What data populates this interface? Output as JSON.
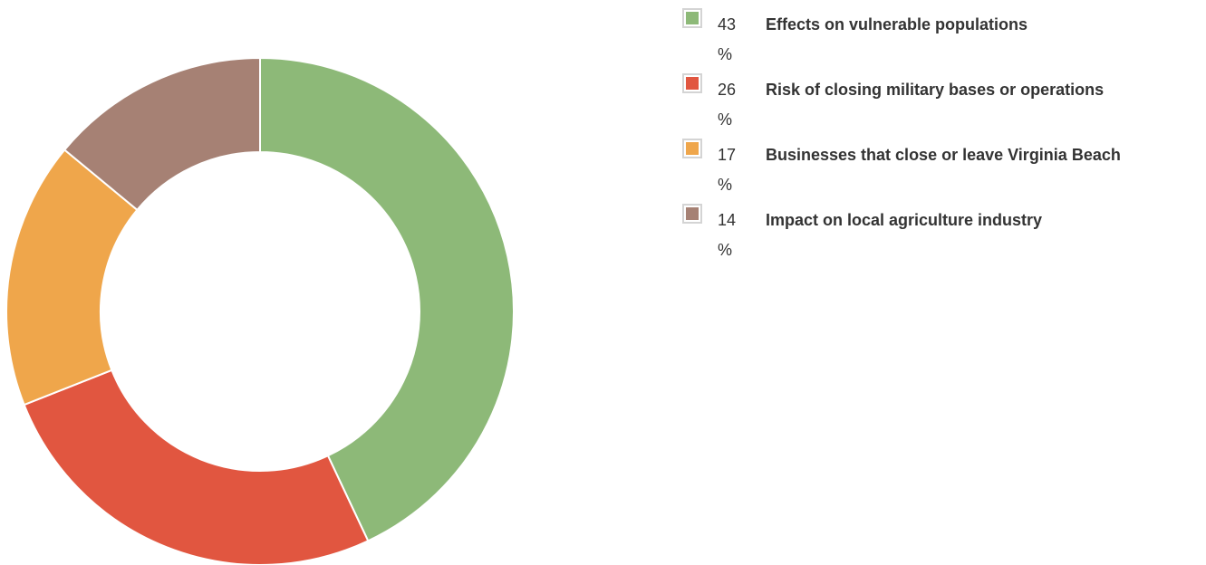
{
  "chart_data": {
    "type": "pie",
    "variant": "donut",
    "unit": "%",
    "legend_position": "right",
    "slices": [
      {
        "label": "Effects on vulnerable populations",
        "value": 43,
        "color": "#8db978"
      },
      {
        "label": "Risk of closing military bases or operations",
        "value": 26,
        "color": "#e15640"
      },
      {
        "label": "Businesses that close or leave Virginia Beach",
        "value": 17,
        "color": "#efa64b"
      },
      {
        "label": "Impact on local agriculture industry",
        "value": 14,
        "color": "#a68174"
      }
    ]
  }
}
